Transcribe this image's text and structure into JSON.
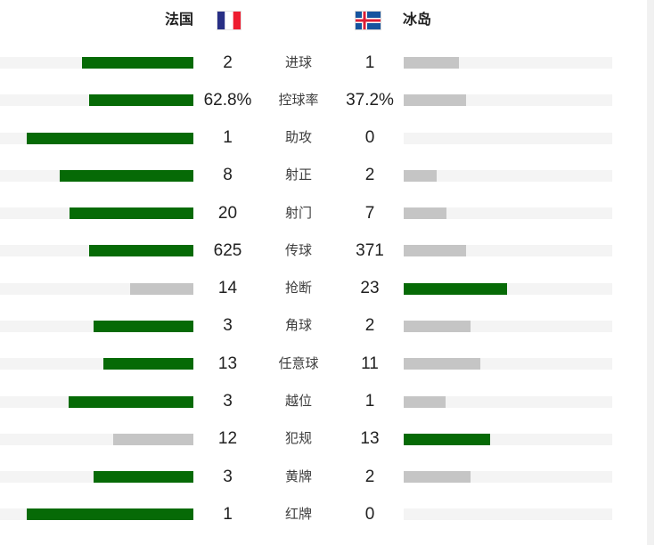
{
  "colors": {
    "win_bar": "#066a06",
    "lose_bar": "#c5c5c5",
    "bar_track": "#f4f4f4",
    "scroll_strip": "#f1f1f1",
    "value_text": "#212121",
    "label_text": "#3d3d3d"
  },
  "header": {
    "home_team": "法国",
    "away_team": "冰岛",
    "home_flag": "france-flag",
    "away_flag": "iceland-flag"
  },
  "chart_data": {
    "type": "bar",
    "subtype": "head-to-head horizontal comparison",
    "home_team": "法国",
    "away_team": "冰岛",
    "bar_rule": "fill width proportional to value/(home+away), winner bar green, loser bar gray",
    "rows": [
      {
        "label": "进球",
        "home": "2",
        "away": "1"
      },
      {
        "label": "控球率",
        "home": "62.8%",
        "away": "37.2%"
      },
      {
        "label": "助攻",
        "home": "1",
        "away": "0"
      },
      {
        "label": "射正",
        "home": "8",
        "away": "2"
      },
      {
        "label": "射门",
        "home": "20",
        "away": "7"
      },
      {
        "label": "传球",
        "home": "625",
        "away": "371"
      },
      {
        "label": "抢断",
        "home": "14",
        "away": "23"
      },
      {
        "label": "角球",
        "home": "3",
        "away": "2"
      },
      {
        "label": "任意球",
        "home": "13",
        "away": "11"
      },
      {
        "label": "越位",
        "home": "3",
        "away": "1"
      },
      {
        "label": "犯规",
        "home": "12",
        "away": "13"
      },
      {
        "label": "黄牌",
        "home": "3",
        "away": "2"
      },
      {
        "label": "红牌",
        "home": "1",
        "away": "0"
      }
    ]
  }
}
